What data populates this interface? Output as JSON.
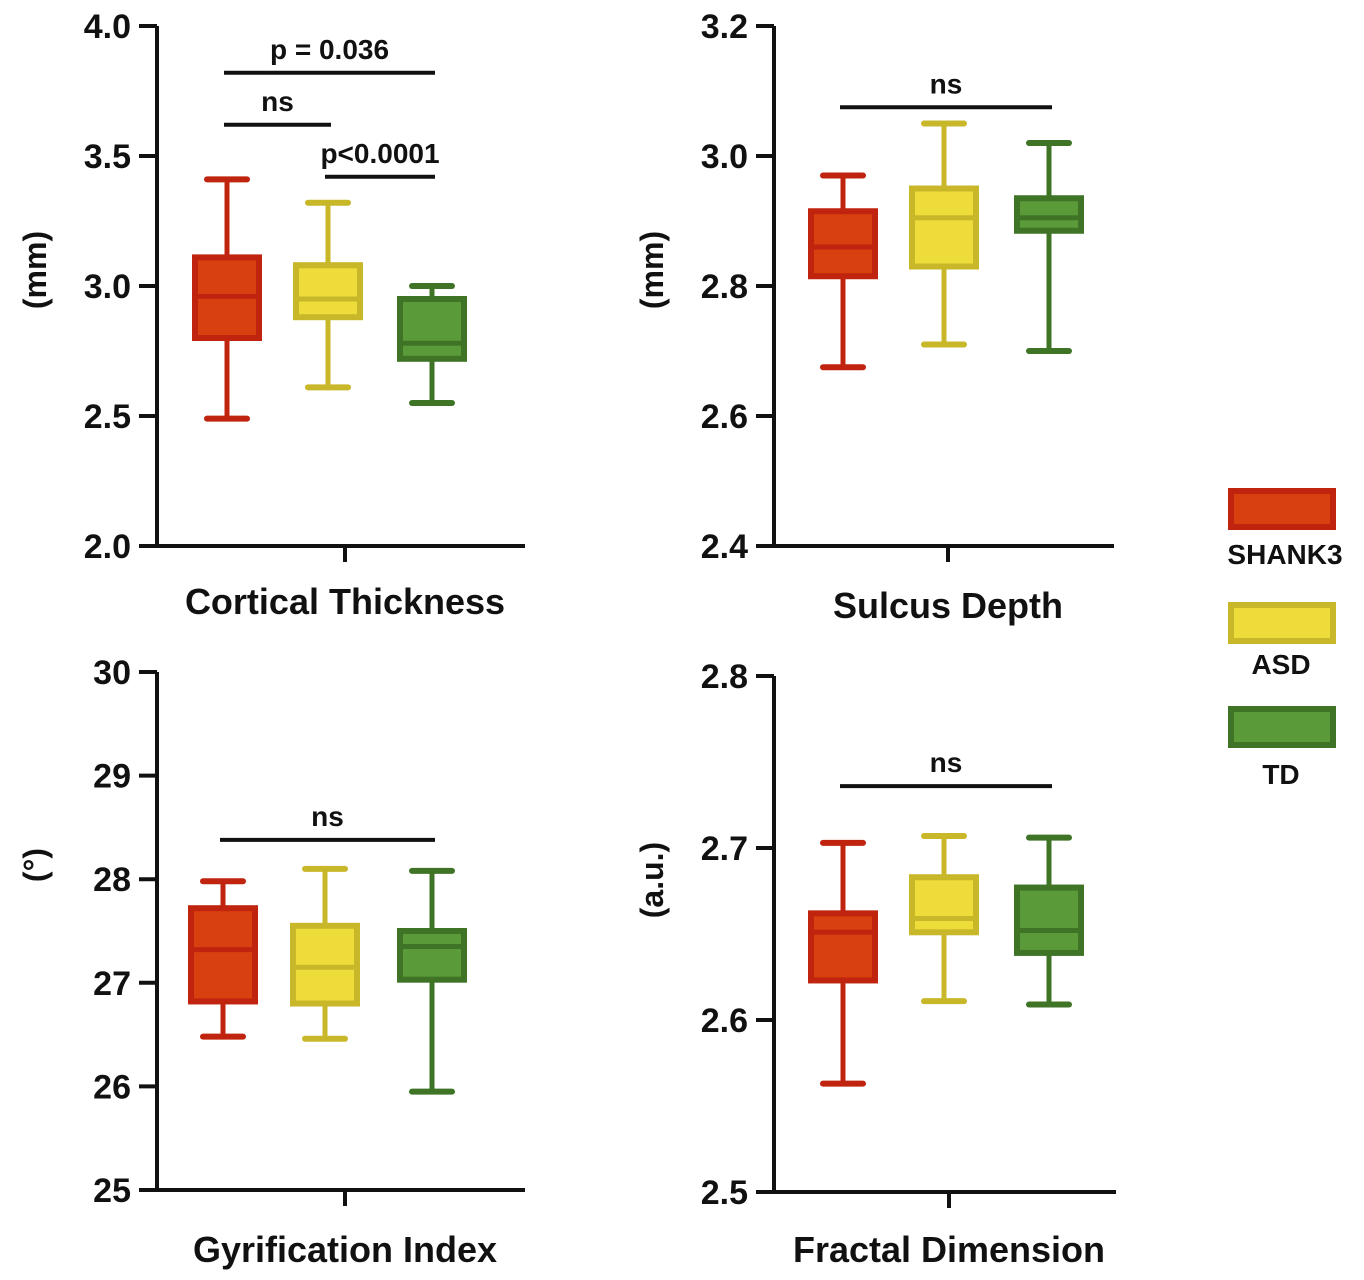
{
  "colors": {
    "SHANK3": {
      "edge": "#C0240E",
      "fill": "#D9400F"
    },
    "ASD": {
      "edge": "#C9B72A",
      "fill": "#EEDC3B"
    },
    "TD": {
      "edge": "#3F7427",
      "fill": "#5A9A38"
    }
  },
  "legend": {
    "items": [
      {
        "key": "SHANK3",
        "label": "SHANK3"
      },
      {
        "key": "ASD",
        "label": "ASD"
      },
      {
        "key": "TD",
        "label": "TD"
      }
    ]
  },
  "chart_data": [
    {
      "type": "box",
      "title": "Cortical Thickness",
      "xlabel": "Cortical Thickness",
      "ylabel": "(mm)",
      "ylim": [
        2.0,
        4.0
      ],
      "yticks": [
        2.0,
        2.5,
        3.0,
        3.5,
        4.0
      ],
      "ytick_labels": [
        "2.0",
        "2.5",
        "3.0",
        "3.5",
        "4.0"
      ],
      "series": [
        {
          "name": "SHANK3",
          "min": 2.49,
          "q1": 2.8,
          "median": 2.96,
          "q3": 3.11,
          "max": 3.41
        },
        {
          "name": "ASD",
          "min": 2.61,
          "q1": 2.88,
          "median": 2.95,
          "q3": 3.08,
          "max": 3.32
        },
        {
          "name": "TD",
          "min": 2.55,
          "q1": 2.72,
          "median": 2.78,
          "q3": 2.95,
          "max": 3.0
        }
      ],
      "annotations": [
        {
          "from": 0,
          "to": 2,
          "y": 3.82,
          "label": "p = 0.036"
        },
        {
          "from": 0,
          "to": 1,
          "y": 3.62,
          "label": "ns"
        },
        {
          "from": 1,
          "to": 2,
          "y": 3.42,
          "label": "p<0.0001"
        }
      ]
    },
    {
      "type": "box",
      "title": "Sulcus Depth",
      "xlabel": "Sulcus Depth",
      "ylabel": "(mm)",
      "ylim": [
        2.4,
        3.2
      ],
      "yticks": [
        2.4,
        2.6,
        2.8,
        3.0,
        3.2
      ],
      "ytick_labels": [
        "2.4",
        "2.6",
        "2.8",
        "3.0",
        "3.2"
      ],
      "series": [
        {
          "name": "SHANK3",
          "min": 2.675,
          "q1": 2.815,
          "median": 2.86,
          "q3": 2.915,
          "max": 2.97
        },
        {
          "name": "ASD",
          "min": 2.71,
          "q1": 2.83,
          "median": 2.905,
          "q3": 2.95,
          "max": 3.05
        },
        {
          "name": "TD",
          "min": 2.7,
          "q1": 2.885,
          "median": 2.905,
          "q3": 2.935,
          "max": 3.02
        }
      ],
      "annotations": [
        {
          "from": 0,
          "to": 2,
          "y": 3.075,
          "label": "ns"
        }
      ]
    },
    {
      "type": "box",
      "title": "Gyrification Index",
      "xlabel": "Gyrification Index",
      "ylabel": "(°)",
      "ylim": [
        25,
        30
      ],
      "yticks": [
        25,
        26,
        27,
        28,
        29,
        30
      ],
      "ytick_labels": [
        "25",
        "26",
        "27",
        "28",
        "29",
        "30"
      ],
      "series": [
        {
          "name": "SHANK3",
          "min": 26.48,
          "q1": 26.82,
          "median": 27.32,
          "q3": 27.72,
          "max": 27.98
        },
        {
          "name": "ASD",
          "min": 26.46,
          "q1": 26.8,
          "median": 27.15,
          "q3": 27.55,
          "max": 28.1
        },
        {
          "name": "TD",
          "min": 25.95,
          "q1": 27.03,
          "median": 27.35,
          "q3": 27.5,
          "max": 28.08
        }
      ],
      "annotations": [
        {
          "from": 0,
          "to": 2,
          "y": 28.38,
          "label": "ns"
        }
      ]
    },
    {
      "type": "box",
      "title": "Fractal Dimension",
      "xlabel": "Fractal Dimension",
      "ylabel": "(a.u.)",
      "ylim": [
        2.5,
        2.8
      ],
      "yticks": [
        2.5,
        2.6,
        2.7,
        2.8
      ],
      "ytick_labels": [
        "2.5",
        "2.6",
        "2.7",
        "2.8"
      ],
      "series": [
        {
          "name": "SHANK3",
          "min": 2.563,
          "q1": 2.623,
          "median": 2.651,
          "q3": 2.662,
          "max": 2.703
        },
        {
          "name": "ASD",
          "min": 2.611,
          "q1": 2.651,
          "median": 2.659,
          "q3": 2.683,
          "max": 2.707
        },
        {
          "name": "TD",
          "min": 2.609,
          "q1": 2.639,
          "median": 2.652,
          "q3": 2.677,
          "max": 2.706
        }
      ],
      "annotations": [
        {
          "from": 0,
          "to": 2,
          "y": 2.736,
          "label": "ns"
        }
      ]
    }
  ]
}
